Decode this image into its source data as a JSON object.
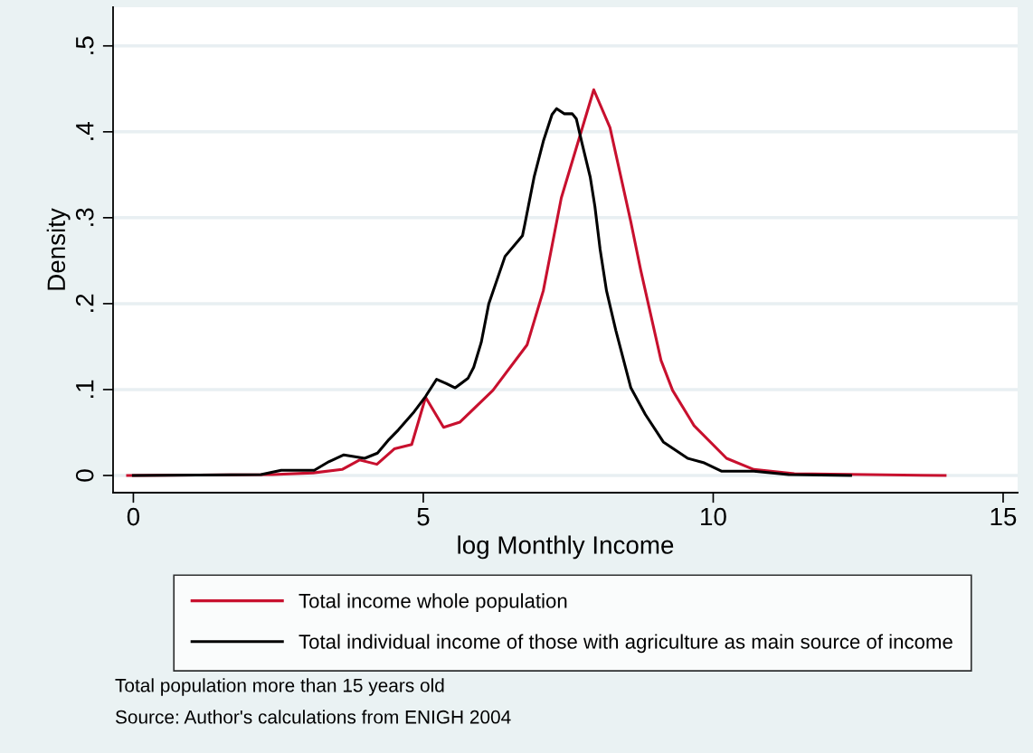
{
  "chart_data": {
    "type": "line",
    "xlabel": "log Monthly Income",
    "ylabel": "Density",
    "xlim": [
      -0.35,
      15.25
    ],
    "ylim": [
      -0.02,
      0.545
    ],
    "xticks": [
      0,
      5,
      10,
      15
    ],
    "yticks": [
      {
        "value": 0,
        "label": "0"
      },
      {
        "value": 0.1,
        "label": ".1"
      },
      {
        "value": 0.2,
        "label": ".2"
      },
      {
        "value": 0.3,
        "label": ".3"
      },
      {
        "value": 0.4,
        "label": ".4"
      },
      {
        "value": 0.5,
        "label": ".5"
      }
    ],
    "grid": "y",
    "legend": "bottom",
    "line_style": "solid",
    "marker": "none",
    "series": [
      {
        "name": "Total income whole population",
        "color": "#c8102e",
        "x": [
          -0.1,
          2.4,
          3.1,
          3.6,
          3.9,
          4.2,
          4.5,
          4.8,
          5.04,
          5.35,
          5.63,
          6.2,
          6.79,
          7.07,
          7.38,
          7.94,
          8.22,
          8.58,
          8.75,
          9.1,
          9.3,
          9.67,
          10.23,
          10.7,
          11.4,
          14.0
        ],
        "values": [
          0,
          0.001,
          0.003,
          0.007,
          0.018,
          0.013,
          0.031,
          0.036,
          0.091,
          0.056,
          0.062,
          0.099,
          0.152,
          0.215,
          0.323,
          0.449,
          0.405,
          0.295,
          0.239,
          0.134,
          0.099,
          0.058,
          0.02,
          0.007,
          0.002,
          0
        ]
      },
      {
        "name": "Total individual income of those with agriculture as main source of income",
        "color": "#000000",
        "x": [
          0,
          2.2,
          2.55,
          3.12,
          3.37,
          3.63,
          3.99,
          4.21,
          4.41,
          4.57,
          4.84,
          5.04,
          5.23,
          5.4,
          5.55,
          5.77,
          5.87,
          6.0,
          6.13,
          6.41,
          6.71,
          6.75,
          6.91,
          7.07,
          7.22,
          7.3,
          7.43,
          7.57,
          7.64,
          7.74,
          7.88,
          7.96,
          8.05,
          8.16,
          8.32,
          8.58,
          8.83,
          9.14,
          9.56,
          9.83,
          10.14,
          10.7,
          11.3,
          12.37
        ],
        "values": [
          0,
          0.001,
          0.006,
          0.006,
          0.016,
          0.024,
          0.02,
          0.026,
          0.042,
          0.053,
          0.074,
          0.092,
          0.112,
          0.107,
          0.102,
          0.113,
          0.126,
          0.155,
          0.2,
          0.255,
          0.279,
          0.292,
          0.347,
          0.389,
          0.42,
          0.427,
          0.421,
          0.421,
          0.415,
          0.386,
          0.347,
          0.313,
          0.263,
          0.215,
          0.169,
          0.102,
          0.071,
          0.039,
          0.02,
          0.015,
          0.005,
          0.005,
          0.001,
          0
        ]
      }
    ],
    "annotations": [
      "Total population more than 15 years old",
      "Source: Author's calculations from ENIGH 2004"
    ]
  }
}
